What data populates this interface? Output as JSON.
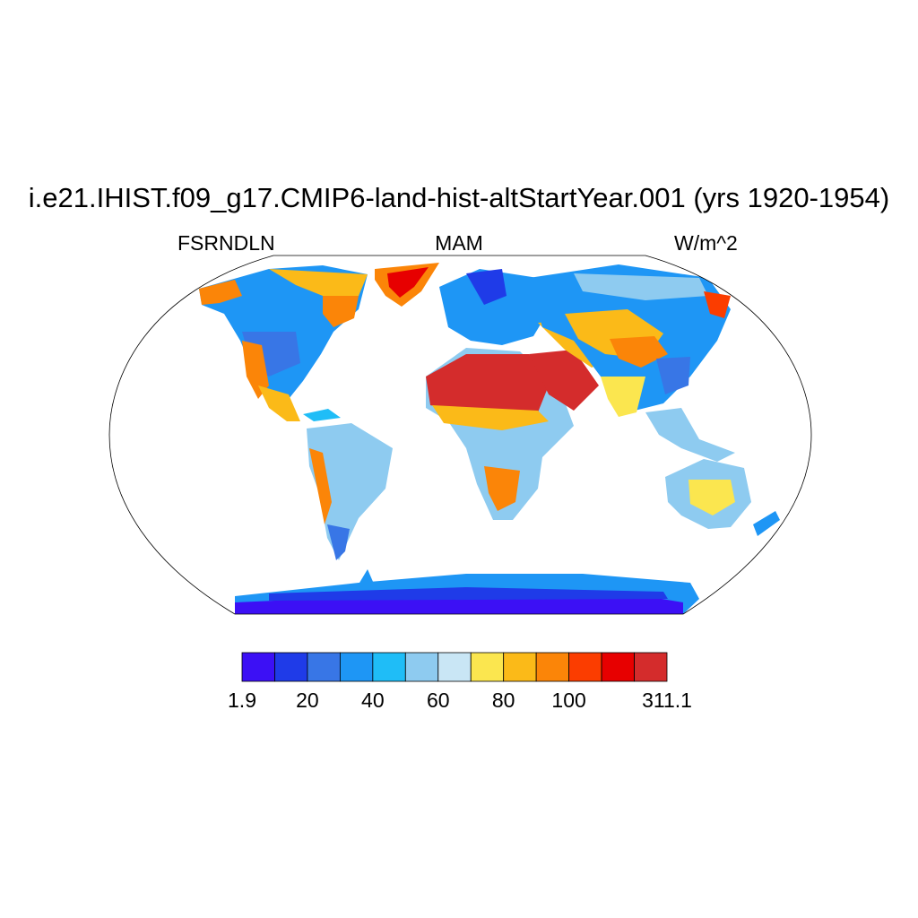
{
  "title": "i.e21.IHIST.f09_g17.CMIP6-land-hist-altStartYear.001 (yrs 1920-1954)",
  "left_label": "FSRNDLN",
  "center_label": "MAM",
  "right_label": "W/m^2",
  "colorbar": {
    "colors": [
      "#3c10f5",
      "#1f3be8",
      "#3876e6",
      "#1e96f5",
      "#1fbdf7",
      "#8ecbf0",
      "#c9e6f5",
      "#fbe64f",
      "#fbba18",
      "#fb8508",
      "#fb3d00",
      "#e70000",
      "#d42c2c"
    ],
    "labels": [
      {
        "text": "1.9",
        "boundary": 0
      },
      {
        "text": "20",
        "boundary": 2
      },
      {
        "text": "40",
        "boundary": 4
      },
      {
        "text": "60",
        "boundary": 6
      },
      {
        "text": "80",
        "boundary": 8
      },
      {
        "text": "100",
        "boundary": 10
      },
      {
        "text": "311.1",
        "boundary": 13
      }
    ]
  }
}
